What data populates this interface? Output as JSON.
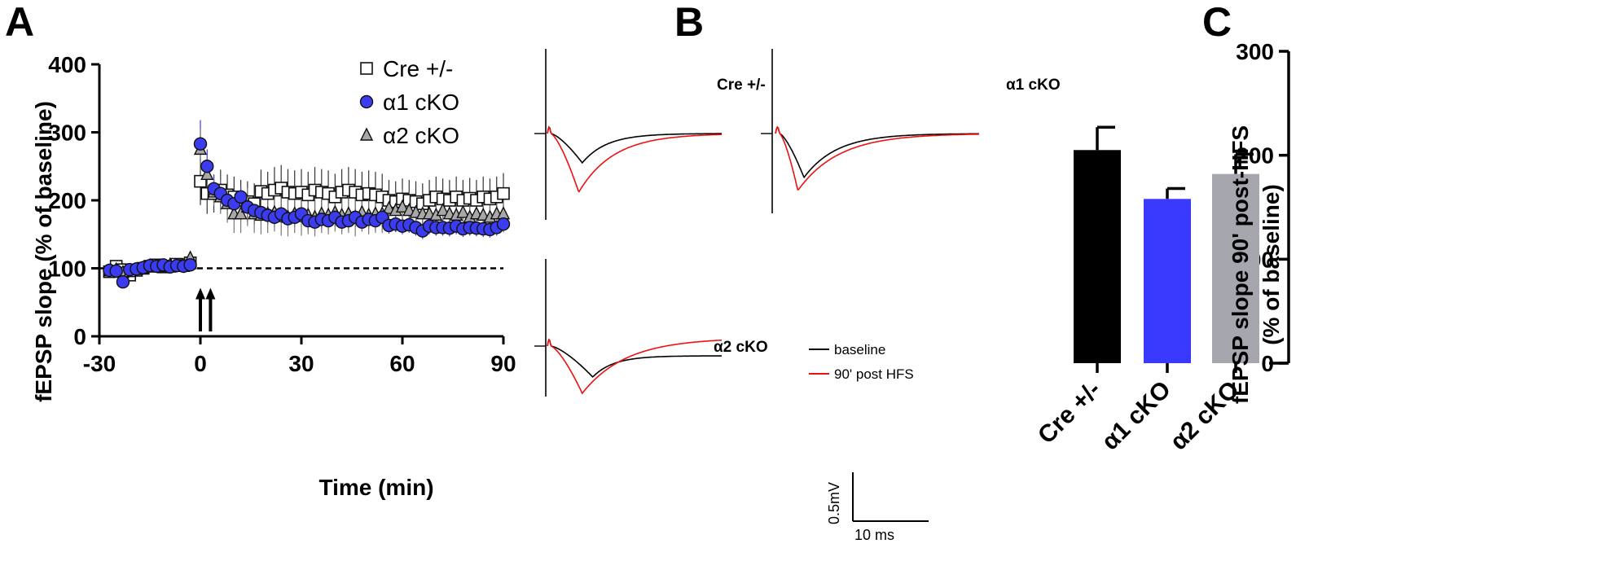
{
  "colors": {
    "cre": "#ffffff",
    "a1": "#3b3bf0",
    "a2": "#a8a8a8",
    "black_bar": "#000000",
    "blue_bar": "#3a3aff",
    "grey_bar": "#a6a6ae",
    "baseline_trace": "#000000",
    "post_trace": "#ee1111"
  },
  "panels": {
    "a": "A",
    "b": "B",
    "c": "C"
  },
  "chart_data": [
    {
      "panel": "A",
      "type": "scatter",
      "xlabel": "Time (min)",
      "ylabel": "fEPSP slope (% of baseline)",
      "xlim": [
        -30,
        90
      ],
      "ylim": [
        0,
        400
      ],
      "xticks": [
        "-30",
        "0",
        "30",
        "60",
        "90"
      ],
      "yticks": [
        "0",
        "100",
        "200",
        "300",
        "400"
      ],
      "baseline_line": 100,
      "stimulus_arrows_min": [
        0,
        3
      ],
      "legend_position": "top-right",
      "series": [
        {
          "name": "Cre +/-",
          "marker": "square",
          "x": [
            -27,
            -25,
            -23,
            -21,
            -19,
            -17,
            -15,
            -13,
            -11,
            -9,
            -7,
            -5,
            -3,
            0,
            2,
            4,
            6,
            8,
            10,
            12,
            14,
            16,
            18,
            20,
            22,
            24,
            26,
            28,
            30,
            32,
            34,
            36,
            38,
            40,
            42,
            44,
            46,
            48,
            50,
            52,
            54,
            56,
            58,
            60,
            62,
            64,
            66,
            68,
            70,
            72,
            74,
            76,
            78,
            80,
            82,
            84,
            86,
            88,
            90
          ],
          "y": [
            95,
            103,
            98,
            90,
            97,
            100,
            103,
            105,
            102,
            103,
            106,
            104,
            108,
            228,
            210,
            210,
            215,
            208,
            205,
            200,
            198,
            195,
            213,
            210,
            215,
            218,
            212,
            210,
            212,
            208,
            215,
            212,
            210,
            205,
            212,
            215,
            212,
            208,
            210,
            208,
            205,
            200,
            198,
            202,
            200,
            198,
            195,
            200,
            205,
            202,
            200,
            205,
            200,
            203,
            200,
            205,
            202,
            205,
            210
          ],
          "err": [
            6,
            5,
            6,
            6,
            5,
            5,
            5,
            5,
            5,
            5,
            5,
            5,
            6,
            35,
            30,
            28,
            30,
            30,
            30,
            30,
            30,
            30,
            32,
            32,
            34,
            34,
            34,
            34,
            34,
            34,
            34,
            34,
            34,
            34,
            34,
            34,
            34,
            34,
            34,
            34,
            34,
            30,
            30,
            30,
            30,
            30,
            30,
            30,
            30,
            30,
            30,
            30,
            30,
            30,
            30,
            30,
            30,
            30,
            30
          ]
        },
        {
          "name": "α1 cKO",
          "marker": "circle",
          "x": [
            -27,
            -25,
            -23,
            -21,
            -19,
            -17,
            -15,
            -13,
            -11,
            -9,
            -7,
            -5,
            -3,
            0,
            2,
            4,
            6,
            8,
            10,
            12,
            14,
            16,
            18,
            20,
            22,
            24,
            26,
            28,
            30,
            32,
            34,
            36,
            38,
            40,
            42,
            44,
            46,
            48,
            50,
            52,
            54,
            56,
            58,
            60,
            62,
            64,
            66,
            68,
            70,
            72,
            74,
            76,
            78,
            80,
            82,
            84,
            86,
            88,
            90
          ],
          "y": [
            97,
            96,
            80,
            98,
            99,
            101,
            104,
            103,
            105,
            102,
            104,
            103,
            105,
            283,
            250,
            217,
            210,
            200,
            195,
            205,
            190,
            185,
            182,
            178,
            175,
            180,
            173,
            175,
            180,
            170,
            168,
            172,
            170,
            175,
            168,
            170,
            175,
            168,
            172,
            170,
            175,
            163,
            165,
            162,
            164,
            160,
            155,
            162,
            160,
            160,
            159,
            162,
            158,
            160,
            159,
            158,
            157,
            160,
            165
          ],
          "err": [
            5,
            5,
            5,
            5,
            5,
            5,
            5,
            5,
            5,
            5,
            5,
            5,
            5,
            35,
            25,
            20,
            20,
            15,
            15,
            15,
            15,
            15,
            14,
            14,
            14,
            14,
            14,
            14,
            14,
            14,
            14,
            14,
            14,
            14,
            14,
            14,
            14,
            14,
            14,
            14,
            14,
            12,
            12,
            12,
            12,
            12,
            12,
            12,
            12,
            12,
            12,
            12,
            12,
            12,
            12,
            12,
            12,
            12,
            12
          ]
        },
        {
          "name": "α2 cKO",
          "marker": "triangle",
          "x": [
            -27,
            -25,
            -23,
            -21,
            -19,
            -17,
            -15,
            -13,
            -11,
            -9,
            -7,
            -5,
            -3,
            0,
            2,
            4,
            6,
            8,
            10,
            12,
            14,
            16,
            18,
            20,
            22,
            24,
            26,
            28,
            30,
            32,
            34,
            36,
            38,
            40,
            42,
            44,
            46,
            48,
            50,
            52,
            54,
            56,
            58,
            60,
            62,
            64,
            66,
            68,
            70,
            72,
            74,
            76,
            78,
            80,
            82,
            84,
            86,
            88,
            90
          ],
          "y": [
            96,
            98,
            94,
            95,
            98,
            100,
            104,
            103,
            102,
            105,
            103,
            104,
            115,
            275,
            238,
            212,
            205,
            195,
            180,
            180,
            190,
            180,
            178,
            180,
            182,
            176,
            175,
            180,
            176,
            178,
            175,
            180,
            178,
            182,
            178,
            180,
            175,
            182,
            178,
            180,
            180,
            188,
            185,
            190,
            185,
            182,
            180,
            180,
            178,
            185,
            180,
            178,
            182,
            175,
            180,
            178,
            175,
            180,
            180
          ],
          "err": [
            5,
            5,
            5,
            5,
            5,
            5,
            5,
            5,
            5,
            5,
            5,
            5,
            6,
            30,
            25,
            20,
            25,
            28,
            28,
            28,
            28,
            28,
            28,
            28,
            28,
            28,
            28,
            28,
            28,
            28,
            28,
            28,
            28,
            28,
            28,
            28,
            28,
            28,
            28,
            28,
            28,
            26,
            26,
            26,
            26,
            26,
            26,
            26,
            26,
            26,
            26,
            26,
            26,
            26,
            26,
            26,
            26,
            26,
            26
          ]
        }
      ]
    },
    {
      "panel": "B",
      "type": "line",
      "trace_labels": [
        "Cre +/-",
        "α1 cKO",
        "α2 cKO"
      ],
      "legend": [
        "baseline",
        "90' post HFS"
      ],
      "scale_y": "0.5mV",
      "scale_x": "10 ms"
    },
    {
      "panel": "C",
      "type": "bar",
      "ylabel_line1": "fEPSP slope 90' post-HFS",
      "ylabel_line2": "(% of baseline)",
      "categories": [
        "Cre +/-",
        "α1 cKO",
        "α2 cKO"
      ],
      "values": [
        205,
        158,
        182
      ],
      "errors": [
        22,
        10,
        19
      ],
      "ylim": [
        0,
        300
      ],
      "yticks": [
        "0",
        "100",
        "200",
        "300"
      ]
    }
  ]
}
